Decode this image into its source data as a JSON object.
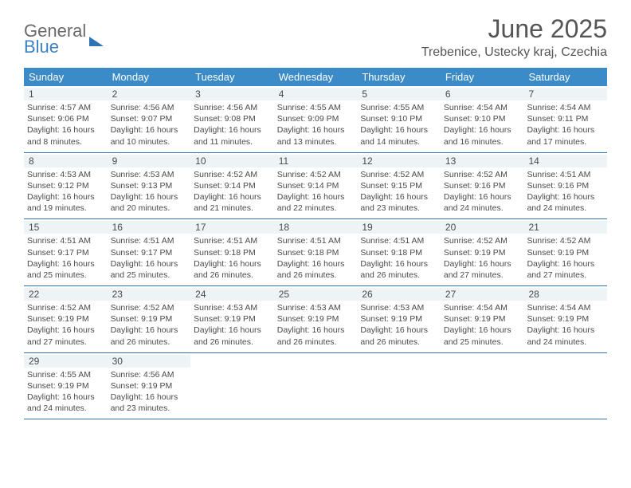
{
  "logo": {
    "line1": "General",
    "line2": "Blue"
  },
  "title": "June 2025",
  "location": "Trebenice, Ustecky kraj, Czechia",
  "colors": {
    "header_bg": "#3b8bc9",
    "header_text": "#ffffff",
    "day_num_bg": "#eef3f6",
    "week_border": "#2e74b5",
    "text": "#4a4a4a",
    "logo_gray": "#6a6a6a",
    "logo_blue": "#3b82c4",
    "background": "#ffffff"
  },
  "day_names": [
    "Sunday",
    "Monday",
    "Tuesday",
    "Wednesday",
    "Thursday",
    "Friday",
    "Saturday"
  ],
  "days": [
    {
      "n": "1",
      "sr": "Sunrise: 4:57 AM",
      "ss": "Sunset: 9:06 PM",
      "dl": "Daylight: 16 hours and 8 minutes."
    },
    {
      "n": "2",
      "sr": "Sunrise: 4:56 AM",
      "ss": "Sunset: 9:07 PM",
      "dl": "Daylight: 16 hours and 10 minutes."
    },
    {
      "n": "3",
      "sr": "Sunrise: 4:56 AM",
      "ss": "Sunset: 9:08 PM",
      "dl": "Daylight: 16 hours and 11 minutes."
    },
    {
      "n": "4",
      "sr": "Sunrise: 4:55 AM",
      "ss": "Sunset: 9:09 PM",
      "dl": "Daylight: 16 hours and 13 minutes."
    },
    {
      "n": "5",
      "sr": "Sunrise: 4:55 AM",
      "ss": "Sunset: 9:10 PM",
      "dl": "Daylight: 16 hours and 14 minutes."
    },
    {
      "n": "6",
      "sr": "Sunrise: 4:54 AM",
      "ss": "Sunset: 9:10 PM",
      "dl": "Daylight: 16 hours and 16 minutes."
    },
    {
      "n": "7",
      "sr": "Sunrise: 4:54 AM",
      "ss": "Sunset: 9:11 PM",
      "dl": "Daylight: 16 hours and 17 minutes."
    },
    {
      "n": "8",
      "sr": "Sunrise: 4:53 AM",
      "ss": "Sunset: 9:12 PM",
      "dl": "Daylight: 16 hours and 19 minutes."
    },
    {
      "n": "9",
      "sr": "Sunrise: 4:53 AM",
      "ss": "Sunset: 9:13 PM",
      "dl": "Daylight: 16 hours and 20 minutes."
    },
    {
      "n": "10",
      "sr": "Sunrise: 4:52 AM",
      "ss": "Sunset: 9:14 PM",
      "dl": "Daylight: 16 hours and 21 minutes."
    },
    {
      "n": "11",
      "sr": "Sunrise: 4:52 AM",
      "ss": "Sunset: 9:14 PM",
      "dl": "Daylight: 16 hours and 22 minutes."
    },
    {
      "n": "12",
      "sr": "Sunrise: 4:52 AM",
      "ss": "Sunset: 9:15 PM",
      "dl": "Daylight: 16 hours and 23 minutes."
    },
    {
      "n": "13",
      "sr": "Sunrise: 4:52 AM",
      "ss": "Sunset: 9:16 PM",
      "dl": "Daylight: 16 hours and 24 minutes."
    },
    {
      "n": "14",
      "sr": "Sunrise: 4:51 AM",
      "ss": "Sunset: 9:16 PM",
      "dl": "Daylight: 16 hours and 24 minutes."
    },
    {
      "n": "15",
      "sr": "Sunrise: 4:51 AM",
      "ss": "Sunset: 9:17 PM",
      "dl": "Daylight: 16 hours and 25 minutes."
    },
    {
      "n": "16",
      "sr": "Sunrise: 4:51 AM",
      "ss": "Sunset: 9:17 PM",
      "dl": "Daylight: 16 hours and 25 minutes."
    },
    {
      "n": "17",
      "sr": "Sunrise: 4:51 AM",
      "ss": "Sunset: 9:18 PM",
      "dl": "Daylight: 16 hours and 26 minutes."
    },
    {
      "n": "18",
      "sr": "Sunrise: 4:51 AM",
      "ss": "Sunset: 9:18 PM",
      "dl": "Daylight: 16 hours and 26 minutes."
    },
    {
      "n": "19",
      "sr": "Sunrise: 4:51 AM",
      "ss": "Sunset: 9:18 PM",
      "dl": "Daylight: 16 hours and 26 minutes."
    },
    {
      "n": "20",
      "sr": "Sunrise: 4:52 AM",
      "ss": "Sunset: 9:19 PM",
      "dl": "Daylight: 16 hours and 27 minutes."
    },
    {
      "n": "21",
      "sr": "Sunrise: 4:52 AM",
      "ss": "Sunset: 9:19 PM",
      "dl": "Daylight: 16 hours and 27 minutes."
    },
    {
      "n": "22",
      "sr": "Sunrise: 4:52 AM",
      "ss": "Sunset: 9:19 PM",
      "dl": "Daylight: 16 hours and 27 minutes."
    },
    {
      "n": "23",
      "sr": "Sunrise: 4:52 AM",
      "ss": "Sunset: 9:19 PM",
      "dl": "Daylight: 16 hours and 26 minutes."
    },
    {
      "n": "24",
      "sr": "Sunrise: 4:53 AM",
      "ss": "Sunset: 9:19 PM",
      "dl": "Daylight: 16 hours and 26 minutes."
    },
    {
      "n": "25",
      "sr": "Sunrise: 4:53 AM",
      "ss": "Sunset: 9:19 PM",
      "dl": "Daylight: 16 hours and 26 minutes."
    },
    {
      "n": "26",
      "sr": "Sunrise: 4:53 AM",
      "ss": "Sunset: 9:19 PM",
      "dl": "Daylight: 16 hours and 26 minutes."
    },
    {
      "n": "27",
      "sr": "Sunrise: 4:54 AM",
      "ss": "Sunset: 9:19 PM",
      "dl": "Daylight: 16 hours and 25 minutes."
    },
    {
      "n": "28",
      "sr": "Sunrise: 4:54 AM",
      "ss": "Sunset: 9:19 PM",
      "dl": "Daylight: 16 hours and 24 minutes."
    },
    {
      "n": "29",
      "sr": "Sunrise: 4:55 AM",
      "ss": "Sunset: 9:19 PM",
      "dl": "Daylight: 16 hours and 24 minutes."
    },
    {
      "n": "30",
      "sr": "Sunrise: 4:56 AM",
      "ss": "Sunset: 9:19 PM",
      "dl": "Daylight: 16 hours and 23 minutes."
    }
  ]
}
